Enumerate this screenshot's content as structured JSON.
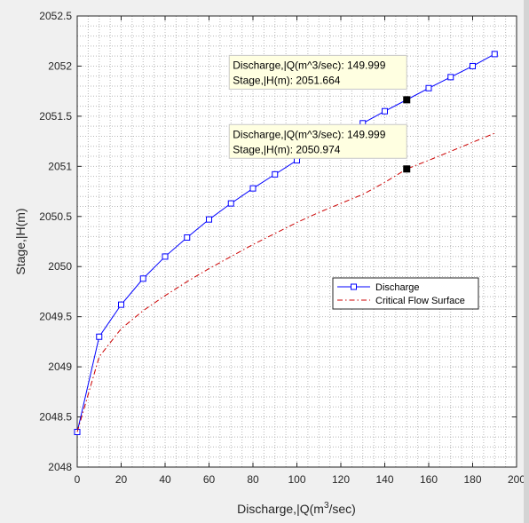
{
  "chart_data": {
    "type": "line",
    "title": "",
    "xlabel_main": "Discharge,|Q(m",
    "xlabel_sup": "3",
    "xlabel_tail": "/sec)",
    "ylabel": "Stage,|H(m)",
    "xlim": [
      0,
      200
    ],
    "ylim": [
      2048,
      2052.5
    ],
    "x_ticks": [
      0,
      20,
      40,
      60,
      80,
      100,
      120,
      140,
      160,
      180,
      200
    ],
    "y_ticks": [
      2048,
      2048.5,
      2049,
      2049.5,
      2050,
      2050.5,
      2051,
      2051.5,
      2052,
      2052.5
    ],
    "x_tick_labels": [
      "0",
      "20",
      "40",
      "60",
      "80",
      "100",
      "120",
      "140",
      "160",
      "180",
      "200"
    ],
    "y_tick_labels": [
      "2048",
      "2048.5",
      "2049",
      "2049.5",
      "2050",
      "2050.5",
      "2051",
      "2051.5",
      "2052",
      "2052.5"
    ],
    "grid": "major-and-minor-dotted",
    "legend_position": "right-middle",
    "series": [
      {
        "name": "Discharge",
        "color": "#0000ff",
        "style": "solid",
        "marker": "square",
        "x": [
          0,
          10,
          20,
          30,
          40,
          50,
          60,
          70,
          80,
          90,
          100,
          110,
          120,
          130,
          140,
          150,
          160,
          170,
          180,
          190
        ],
        "y": [
          2048.35,
          2049.3,
          2049.62,
          2049.88,
          2050.1,
          2050.29,
          2050.47,
          2050.63,
          2050.78,
          2050.92,
          2051.06,
          2051.19,
          2051.31,
          2051.43,
          2051.55,
          2051.664,
          2051.78,
          2051.89,
          2052.0,
          2052.12
        ]
      },
      {
        "name": "Critical Flow Surface",
        "color": "#cc0000",
        "style": "dash-dot",
        "marker": "none",
        "x": [
          0,
          10,
          20,
          30,
          40,
          50,
          60,
          70,
          80,
          90,
          100,
          110,
          120,
          130,
          140,
          150,
          160,
          170,
          180,
          190
        ],
        "y": [
          2048.35,
          2049.1,
          2049.38,
          2049.56,
          2049.71,
          2049.85,
          2049.98,
          2050.1,
          2050.22,
          2050.33,
          2050.44,
          2050.54,
          2050.63,
          2050.72,
          2050.84,
          2050.974,
          2051.06,
          2051.15,
          2051.24,
          2051.33
        ]
      }
    ],
    "datatips": [
      {
        "x": 149.999,
        "y": 2051.664,
        "line1": "Discharge,|Q(m^3/sec): 149.999",
        "line2": "Stage,|H(m): 2051.664"
      },
      {
        "x": 149.999,
        "y": 2050.974,
        "line1": "Discharge,|Q(m^3/sec): 149.999",
        "line2": "Stage,|H(m): 2050.974"
      }
    ]
  }
}
